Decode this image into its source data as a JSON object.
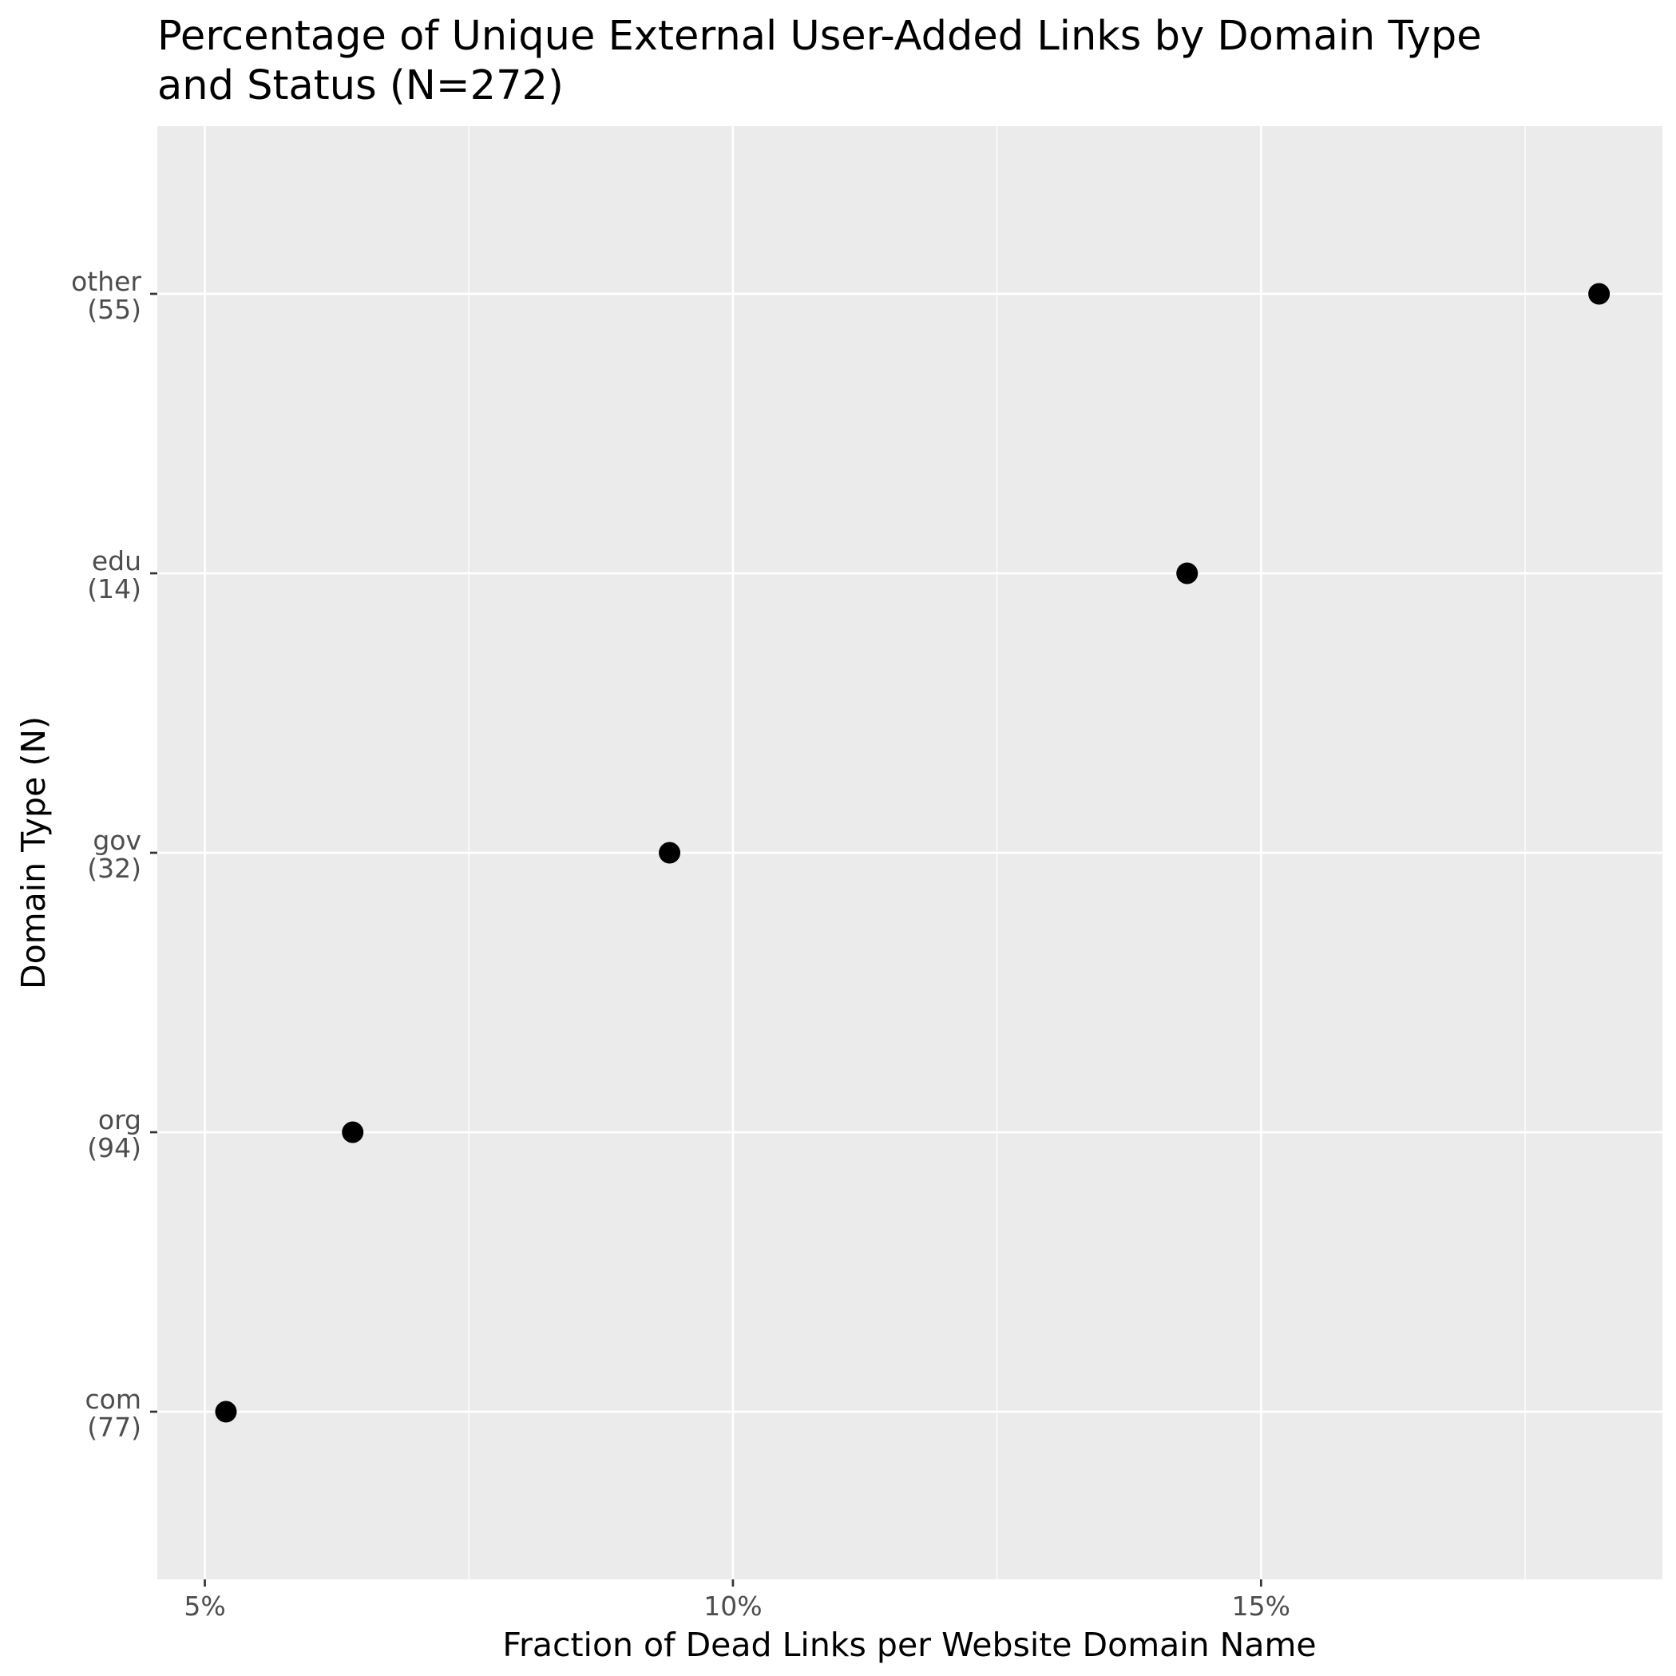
{
  "chart_data": {
    "type": "scatter",
    "title": "Percentage of Unique External User-Added Links by Domain Type and Status (N=272)",
    "title_lines": [
      "Percentage of Unique External User-Added Links by Domain Type",
      "and Status (N=272)"
    ],
    "xlabel": "Fraction of Dead Links per Website Domain Name",
    "ylabel": "Domain Type (N)",
    "x_ticks": [
      {
        "value": 0.05,
        "label": "5%"
      },
      {
        "value": 0.1,
        "label": "10%"
      },
      {
        "value": 0.15,
        "label": "15%"
      }
    ],
    "xlim": [
      0.0455,
      0.188
    ],
    "categories": [
      {
        "name": "com",
        "n": "(77)"
      },
      {
        "name": "org",
        "n": "(94)"
      },
      {
        "name": "gov",
        "n": "(32)"
      },
      {
        "name": "edu",
        "n": "(14)"
      },
      {
        "name": "other",
        "n": "(55)"
      }
    ],
    "points": [
      {
        "category": "com",
        "x": 0.052
      },
      {
        "category": "org",
        "x": 0.064
      },
      {
        "category": "gov",
        "x": 0.094
      },
      {
        "category": "edu",
        "x": 0.143
      },
      {
        "category": "other",
        "x": 0.182
      }
    ],
    "grid": true,
    "panel_color": "#ebebeb",
    "gridline_color": "#ffffff",
    "point_color": "#000000"
  }
}
